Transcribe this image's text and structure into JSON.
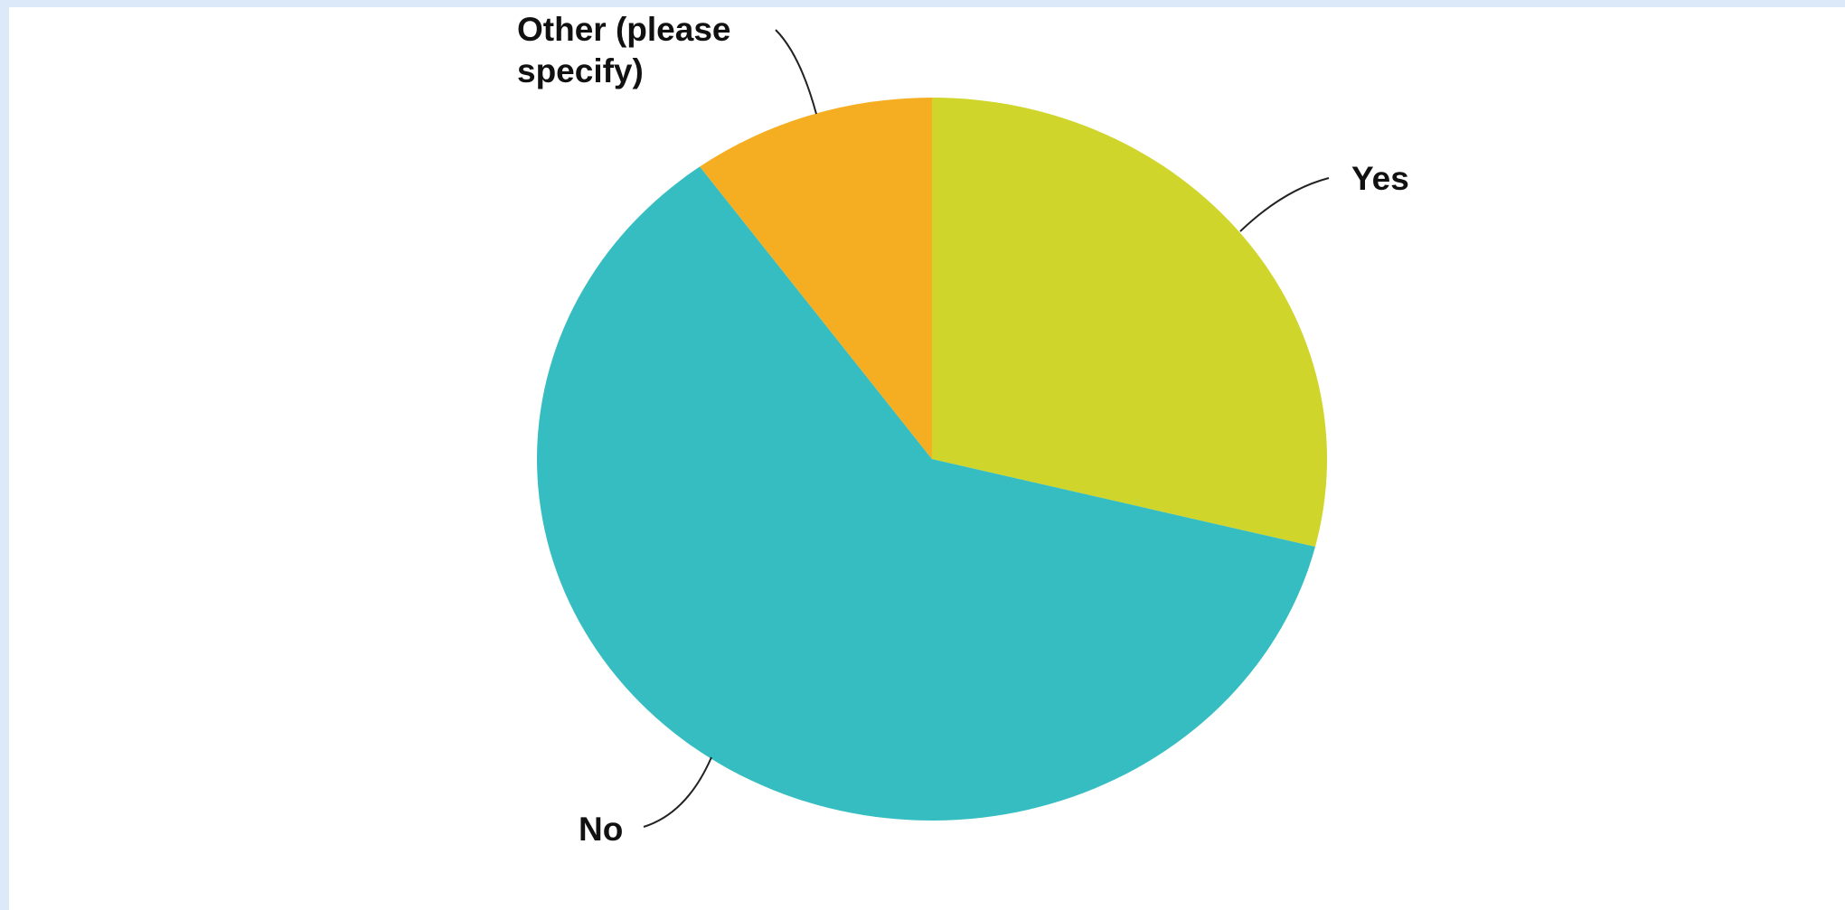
{
  "chart_data": {
    "type": "pie",
    "start_angle_deg": 0,
    "direction": "clockwise",
    "slices": [
      {
        "label": "Yes",
        "value": 28.9,
        "color": "#cfd52a"
      },
      {
        "label": "No",
        "value": 61.1,
        "color": "#35bdc1"
      },
      {
        "label": "Other (please specify)",
        "value": 10.0,
        "color": "#f5ae22"
      }
    ],
    "labels": {
      "yes": "Yes",
      "no": "No",
      "other_line1": "Other (please",
      "other_line2": "specify)"
    }
  }
}
